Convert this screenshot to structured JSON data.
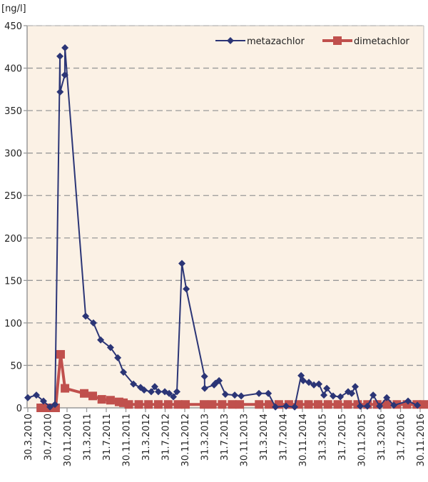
{
  "chart_data": {
    "type": "line",
    "title": "",
    "ylabel": "[ng/l]",
    "xlabel": "",
    "ylim": [
      0,
      450
    ],
    "yticks": [
      0,
      50,
      100,
      150,
      200,
      250,
      300,
      350,
      400,
      450
    ],
    "xlim": [
      "2010-03-30",
      "2016-12-14"
    ],
    "xtick_labels": [
      "30.3.2010",
      "30.7.2010",
      "30.11.2010",
      "31.3.2011",
      "31.7.2011",
      "30.11.2011",
      "31.3.2012",
      "31.7.2012",
      "30.11.2012",
      "31.3.2013",
      "31.7.2013",
      "30.11.2013",
      "31.3.2014",
      "31.7.2014",
      "30.11.2014",
      "31.3.2015",
      "31.7.2015",
      "30.11.2015",
      "31.3.2016",
      "31.7.2016",
      "30.11.2016"
    ],
    "xtick_dates": [
      "2010-03-30",
      "2010-07-30",
      "2010-11-30",
      "2011-03-31",
      "2011-07-31",
      "2011-11-30",
      "2012-03-31",
      "2012-07-31",
      "2012-11-30",
      "2013-03-31",
      "2013-07-31",
      "2013-11-30",
      "2014-03-31",
      "2014-07-31",
      "2014-11-30",
      "2015-03-31",
      "2015-07-31",
      "2015-11-30",
      "2016-03-31",
      "2016-07-31",
      "2016-11-30"
    ],
    "grid": "horizontal dashed",
    "legend": "top-right",
    "background": "#fbf1e5",
    "series": [
      {
        "name": "metazachlor",
        "color": "#2b3576",
        "marker": "diamond",
        "x": [
          "2010-03-30",
          "2010-05-22",
          "2010-07-05",
          "2010-08-14",
          "2010-09-14",
          "2010-10-15",
          "2010-10-16",
          "2010-11-14",
          "2010-11-15",
          "2011-03-23",
          "2011-05-10",
          "2011-06-24",
          "2011-08-24",
          "2011-10-08",
          "2011-11-12",
          "2012-01-13",
          "2012-02-26",
          "2012-03-19",
          "2012-05-02",
          "2012-05-24",
          "2012-06-15",
          "2012-07-25",
          "2012-08-21",
          "2012-09-16",
          "2012-10-08",
          "2012-11-08",
          "2012-12-05",
          "2013-03-28",
          "2013-03-29",
          "2013-05-26",
          "2013-06-04",
          "2013-06-26",
          "2013-08-04",
          "2013-10-01",
          "2013-11-10",
          "2014-02-28",
          "2014-04-27",
          "2014-06-10",
          "2014-08-15",
          "2014-10-07",
          "2014-11-16",
          "2014-11-29",
          "2015-01-03",
          "2015-02-03",
          "2015-03-06",
          "2015-04-06",
          "2015-04-24",
          "2015-06-02",
          "2015-07-17",
          "2015-09-03",
          "2015-09-25",
          "2015-10-17",
          "2015-11-17",
          "2015-12-31",
          "2016-02-05",
          "2016-03-16",
          "2016-04-29",
          "2016-06-12",
          "2016-09-08",
          "2016-11-05"
        ],
        "y": [
          12,
          15,
          8,
          1,
          4,
          414,
          372,
          392,
          424,
          108,
          100,
          80,
          71,
          59,
          42,
          28,
          24,
          21,
          19,
          25,
          19,
          19,
          17,
          13,
          19,
          170,
          140,
          37,
          23,
          27,
          29,
          32,
          16,
          15,
          14,
          17,
          17,
          1,
          2,
          1,
          38,
          32,
          30,
          27,
          28,
          15,
          23,
          14,
          13,
          19,
          17,
          25,
          2,
          2,
          15,
          2,
          12,
          3,
          8,
          3
        ]
      },
      {
        "name": "dimetachlor",
        "color": "#c0504d",
        "marker": "square",
        "x": [
          "2010-06-18",
          "2010-07-20",
          "2010-08-20",
          "2010-09-18",
          "2010-10-19",
          "2010-11-15",
          "2011-03-14",
          "2011-05-06",
          "2011-07-01",
          "2011-08-24",
          "2011-10-16",
          "2011-11-12",
          "2011-12-15",
          "2012-02-15",
          "2012-04-15",
          "2012-06-15",
          "2012-08-15",
          "2012-10-15",
          "2012-11-30",
          "2013-03-25",
          "2013-05-15",
          "2013-07-15",
          "2013-09-15",
          "2013-11-01",
          "2014-03-01",
          "2014-05-01",
          "2014-07-01",
          "2014-09-01",
          "2014-11-01",
          "2015-01-01",
          "2015-03-01",
          "2015-05-01",
          "2015-07-01",
          "2015-09-01",
          "2015-11-01",
          "2016-01-01",
          "2016-03-01",
          "2016-05-01",
          "2016-07-01",
          "2016-09-01",
          "2016-11-01",
          "2016-12-14"
        ],
        "y": [
          0,
          0,
          0,
          0,
          63,
          23,
          17,
          14,
          10,
          9,
          7,
          6,
          4,
          4,
          4,
          4,
          4,
          4,
          4,
          4,
          4,
          4,
          4,
          4,
          4,
          4,
          4,
          4,
          4,
          4,
          4,
          4,
          4,
          4,
          4,
          4,
          4,
          4,
          4,
          4,
          4,
          4
        ]
      }
    ]
  }
}
